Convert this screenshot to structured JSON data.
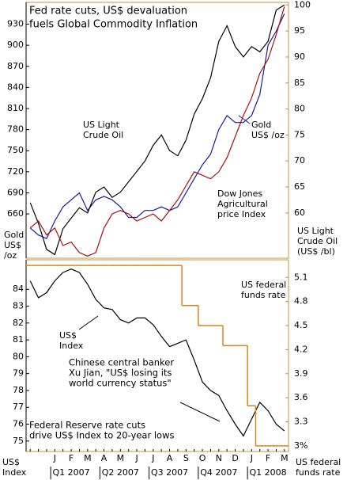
{
  "chart_data": [
    {
      "type": "line",
      "title": [
        "Fed rate cuts, US$ devaluation",
        "fuels Global Commodity Inflation"
      ],
      "ylim": [
        597,
        961
      ],
      "yticks": [
        660,
        690,
        720,
        750,
        780,
        810,
        840,
        870,
        900,
        930
      ],
      "y_label": [
        "Gold",
        "US$",
        "/oz"
      ],
      "y2lim": [
        51.3,
        100.5
      ],
      "y2ticks": [
        60,
        65,
        70,
        75,
        80,
        85,
        90,
        95,
        100
      ],
      "y2_label": [
        "US Light",
        "Crude Oil",
        "(US$ /bl)"
      ],
      "series": [
        {
          "name": [
            "Gold",
            "US$ /oz"
          ],
          "color": "#1a1a9c",
          "values": [
            640,
            630,
            625,
            650,
            670,
            680,
            690,
            665,
            680,
            685,
            680,
            670,
            655,
            655,
            665,
            665,
            670,
            665,
            670,
            690,
            710,
            730,
            745,
            780,
            800,
            790,
            790,
            800,
            830,
            900,
            920,
            945
          ]
        },
        {
          "name": [
            "US Light",
            "Crude Oil"
          ],
          "color": "#000000",
          "axis": "y2",
          "values": [
            62,
            58,
            53,
            52,
            57,
            59,
            61,
            60,
            64,
            65,
            63,
            64,
            66,
            68,
            70,
            73,
            75,
            72,
            71,
            74,
            79,
            82,
            86,
            93,
            96,
            92,
            90,
            92,
            91,
            93,
            99,
            100
          ]
        },
        {
          "name": [
            "Dow Jones",
            "Agricultural",
            "price Index"
          ],
          "color": "#a81010",
          "values": [
            640,
            650,
            630,
            640,
            615,
            620,
            605,
            600,
            605,
            640,
            660,
            665,
            660,
            650,
            655,
            660,
            650,
            665,
            680,
            700,
            720,
            715,
            710,
            720,
            740,
            770,
            800,
            825,
            860,
            880,
            915,
            955
          ]
        }
      ]
    },
    {
      "type": "line",
      "categories": [
        null,
        null,
        null,
        "J",
        null,
        "F",
        null,
        "M",
        null,
        "A",
        null,
        "M",
        null,
        "J",
        null,
        "J",
        null,
        "A",
        null,
        "S",
        null,
        "O",
        null,
        "N",
        null,
        "D",
        null,
        "J",
        null,
        "F",
        null,
        "M"
      ],
      "quarters": [
        "Q1 2007",
        "Q2 2007",
        "Q3 2007",
        "Q4 2007",
        "Q1 2008"
      ],
      "ylim": [
        74.38,
        85.75
      ],
      "yticks": [
        75,
        76,
        77,
        78,
        79,
        80,
        81,
        82,
        83,
        84
      ],
      "y_label": [
        "US$",
        "Index"
      ],
      "y2lim": [
        2.93,
        5.32
      ],
      "y2ticks": [
        {
          "value": 3,
          "label": "3%"
        },
        3.3,
        3.6,
        3.9,
        4.2,
        4.5,
        4.8,
        5.1
      ],
      "y2_label": [
        "US federal",
        "funds rate"
      ],
      "series": [
        {
          "name": [
            "US$",
            "Index"
          ],
          "color": "#000000",
          "values": [
            84.5,
            83.5,
            83.8,
            84.5,
            85.0,
            85.2,
            85.0,
            84.3,
            83.4,
            82.9,
            82.8,
            82.2,
            82.0,
            82.3,
            82.3,
            81.9,
            81.2,
            80.6,
            80.8,
            81.0,
            79.8,
            78.5,
            78.0,
            77.7,
            76.8,
            76.0,
            75.3,
            76.3,
            77.3,
            76.8,
            76.0,
            75.6
          ]
        },
        {
          "name": [
            "US federal",
            "funds rate"
          ],
          "color": "#d4861a",
          "axis": "y2",
          "step": true,
          "values": [
            5.25,
            5.25,
            5.25,
            5.25,
            5.25,
            5.25,
            5.25,
            5.25,
            5.25,
            5.25,
            5.25,
            5.25,
            5.25,
            5.25,
            5.25,
            5.25,
            5.25,
            5.25,
            5.25,
            4.75,
            4.75,
            4.5,
            4.5,
            4.5,
            4.25,
            4.25,
            4.25,
            3.5,
            3,
            3,
            3,
            3
          ]
        }
      ],
      "annotations": [
        {
          "text": [
            "Chinese central banker",
            "Xu Jian, \"US$ losing its",
            "world currency status\""
          ]
        },
        {
          "text": [
            "Federal Reserve rate cuts",
            "drive US$ Index to 20-year lows"
          ]
        }
      ]
    }
  ]
}
